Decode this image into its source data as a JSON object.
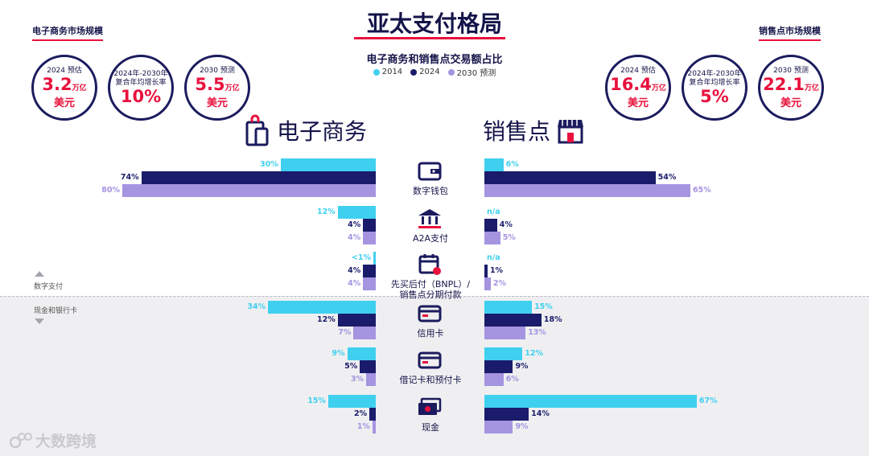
{
  "title": "亚太支付格局",
  "subtitle": "电子商务和销售点交易额占比",
  "legend": [
    {
      "label": "2014",
      "color": "#3fd0ef"
    },
    {
      "label": "2024",
      "color": "#1b1b6b"
    },
    {
      "label": "2030 预测",
      "color": "#a594e0"
    }
  ],
  "left_market": {
    "label": "电子商务市场规模",
    "stats": [
      {
        "top": "2024 预估",
        "value": "3.2",
        "unit": "万亿",
        "bottom": "美元"
      },
      {
        "top": "2024年-2030年",
        "top2": "复合年均增长率",
        "value": "10%",
        "unit": "",
        "bottom": ""
      },
      {
        "top": "2030 预测",
        "value": "5.5",
        "unit": "万亿",
        "bottom": "美元"
      }
    ]
  },
  "right_market": {
    "label": "销售点市场规模",
    "stats": [
      {
        "top": "2024 预估",
        "value": "16.4",
        "unit": "万亿",
        "bottom": "美元"
      },
      {
        "top": "2024年-2030年",
        "top2": "复合年均增长率",
        "value": "5%",
        "unit": "",
        "bottom": ""
      },
      {
        "top": "2030 预测",
        "value": "22.1",
        "unit": "万亿",
        "bottom": "美元"
      }
    ]
  },
  "ecommerce_heading": "电子商务",
  "pos_heading": "销售点",
  "digital_note": "数字支付",
  "cash_note": "现金和银行卡",
  "watermark": "大数跨境",
  "chart_data": {
    "type": "bar",
    "orientation": "horizontal-butterfly",
    "categories": [
      "数字钱包",
      "A2A支付",
      "先买后付（BNPL）/ 销售点分期付款",
      "信用卡",
      "借记卡和预付卡",
      "现金"
    ],
    "category_lines": [
      [
        "数字钱包"
      ],
      [
        "A2A支付"
      ],
      [
        "先买后付（BNPL）/",
        "销售点分期付款"
      ],
      [
        "信用卡"
      ],
      [
        "借记卡和预付卡"
      ],
      [
        "现金"
      ]
    ],
    "icons": [
      "wallet-icon",
      "bank-icon",
      "calendar-icon",
      "credit-card-icon",
      "debit-card-icon",
      "cash-icon"
    ],
    "series_names": [
      "2014",
      "2024",
      "2030 预测"
    ],
    "ecommerce": {
      "values": [
        [
          30,
          74,
          80
        ],
        [
          12,
          4,
          4
        ],
        [
          0.5,
          4,
          4
        ],
        [
          34,
          12,
          7
        ],
        [
          9,
          5,
          3
        ],
        [
          15,
          2,
          1
        ]
      ],
      "labels": [
        [
          "30%",
          "74%",
          "80%"
        ],
        [
          "12%",
          "4%",
          "4%"
        ],
        [
          "<1%",
          "4%",
          "4%"
        ],
        [
          "34%",
          "12%",
          "7%"
        ],
        [
          "9%",
          "5%",
          "3%"
        ],
        [
          "15%",
          "2%",
          "1%"
        ]
      ]
    },
    "pos": {
      "values": [
        [
          6,
          54,
          65
        ],
        [
          0,
          4,
          5
        ],
        [
          0,
          1,
          2
        ],
        [
          15,
          18,
          13
        ],
        [
          12,
          9,
          6
        ],
        [
          67,
          14,
          9
        ]
      ],
      "labels": [
        [
          "6%",
          "54%",
          "65%"
        ],
        [
          "n/a",
          "4%",
          "5%"
        ],
        [
          "n/a",
          "1%",
          "2%"
        ],
        [
          "15%",
          "18%",
          "13%"
        ],
        [
          "12%",
          "9%",
          "6%"
        ],
        [
          "67%",
          "14%",
          "9%"
        ]
      ]
    },
    "xlim": [
      0,
      80
    ]
  }
}
